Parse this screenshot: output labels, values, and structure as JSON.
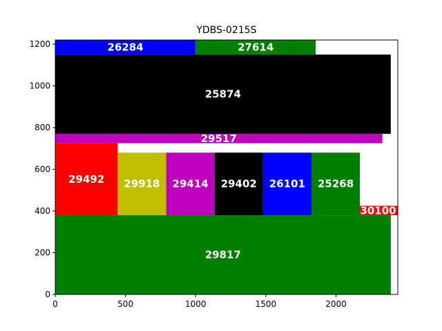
{
  "chart_data": {
    "type": "bar",
    "title": "YDBS-0215S",
    "xlabel": "",
    "ylabel": "",
    "xlim": [
      0,
      2440
    ],
    "ylim": [
      0,
      1220
    ],
    "x_ticks": [
      0,
      500,
      1000,
      1500,
      2000
    ],
    "y_ticks": [
      0,
      200,
      400,
      600,
      800,
      1000,
      1200
    ],
    "grid": false,
    "legend": "none",
    "rectangles": [
      {
        "label": "29817",
        "x": 0,
        "y": 0,
        "w": 2390,
        "h": 380,
        "color": "#008000"
      },
      {
        "label": "30100",
        "x": 2160,
        "y": 380,
        "w": 280,
        "h": 45,
        "color": "#ff0000"
      },
      {
        "label": "29492",
        "x": 0,
        "y": 380,
        "w": 445,
        "h": 345,
        "color": "#ff0000"
      },
      {
        "label": "29918",
        "x": 445,
        "y": 380,
        "w": 345,
        "h": 300,
        "color": "#bfbf00"
      },
      {
        "label": "29414",
        "x": 790,
        "y": 380,
        "w": 345,
        "h": 300,
        "color": "#bf00bf"
      },
      {
        "label": "29402",
        "x": 1135,
        "y": 380,
        "w": 345,
        "h": 300,
        "color": "#000000"
      },
      {
        "label": "26101",
        "x": 1480,
        "y": 380,
        "w": 345,
        "h": 300,
        "color": "#0000ff"
      },
      {
        "label": "25268",
        "x": 1825,
        "y": 380,
        "w": 345,
        "h": 300,
        "color": "#008000"
      },
      {
        "label": "29517",
        "x": 0,
        "y": 725,
        "w": 2330,
        "h": 45,
        "color": "#bf00bf"
      },
      {
        "label": "25874",
        "x": 0,
        "y": 770,
        "w": 2390,
        "h": 380,
        "color": "#000000"
      },
      {
        "label": "26284",
        "x": 0,
        "y": 1150,
        "w": 1000,
        "h": 70,
        "color": "#0000ff"
      },
      {
        "label": "27614",
        "x": 1000,
        "y": 1150,
        "w": 855,
        "h": 70,
        "color": "#008000"
      }
    ]
  }
}
